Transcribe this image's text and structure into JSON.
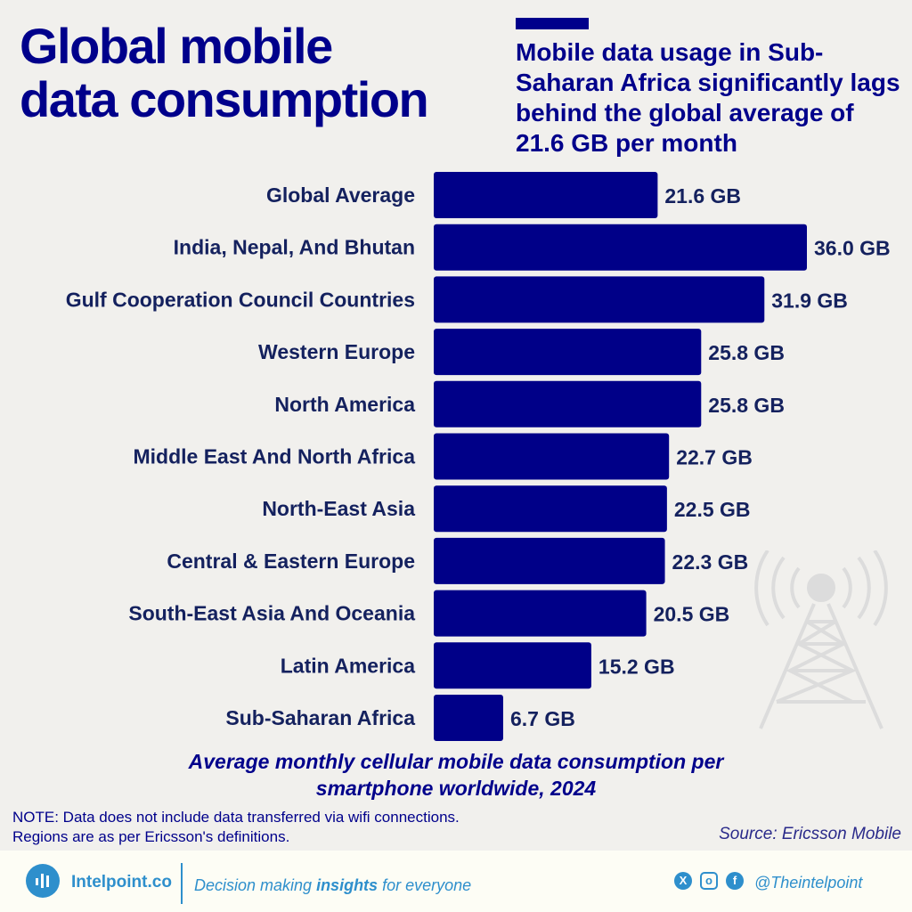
{
  "header": {
    "title": "Global mobile data consumption",
    "subtitle": "Mobile data usage in Sub-Saharan Africa significantly lags behind the global average of 21.6 GB per month"
  },
  "chart_data": {
    "type": "bar",
    "orientation": "horizontal",
    "categories": [
      "Global Average",
      "India, Nepal, And Bhutan",
      "Gulf Cooperation Council Countries",
      "Western Europe",
      "North America",
      "Middle East And North Africa",
      "North-East Asia",
      "Central & Eastern Europe",
      "South-East Asia And Oceania",
      "Latin America",
      "Sub-Saharan Africa"
    ],
    "values": [
      21.6,
      36.0,
      31.9,
      25.8,
      25.8,
      22.7,
      22.5,
      22.3,
      20.5,
      15.2,
      6.7
    ],
    "labels": [
      "21.6 GB",
      "36.0 GB",
      "31.9 GB",
      "25.8 GB",
      "25.8 GB",
      "22.7 GB",
      "22.5 GB",
      "22.3 GB",
      "20.5 GB",
      "15.2 GB",
      "6.7 GB"
    ],
    "unit": "GB",
    "xlim": [
      0,
      36
    ],
    "grid": false,
    "bar_color": "#000088",
    "label_color": "#14215e"
  },
  "caption": {
    "line1": "Average monthly cellular mobile data consumption per",
    "line2": "smartphone worldwide, 2024"
  },
  "note": {
    "line1": "NOTE: Data does not include data transferred via wifi connections.",
    "line2": "Regions are as per Ericsson's definitions."
  },
  "source": "Source: Ericsson Mobile",
  "footer": {
    "brand": "Intelpoint.co",
    "tagline_pre": "Decision making ",
    "tagline_bold": "insights",
    "tagline_post": " for everyone",
    "handle": "@Theintelpoint",
    "social_icons": [
      "x-icon",
      "instagram-icon",
      "facebook-icon"
    ]
  },
  "colors": {
    "primary": "#00008b",
    "footer_accent": "#2e8fcc"
  }
}
